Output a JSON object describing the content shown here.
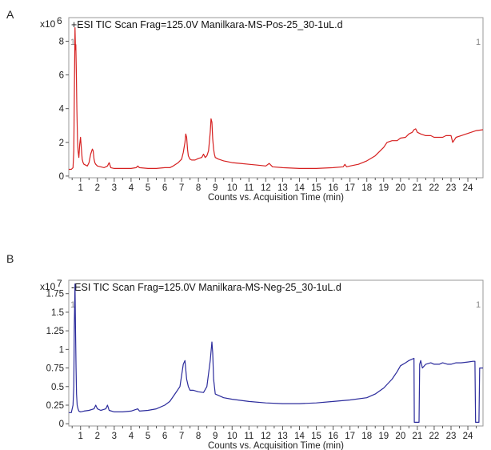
{
  "panels": [
    {
      "letter": "A"
    },
    {
      "letter": "B"
    }
  ],
  "chart_data": [
    {
      "type": "line",
      "title": "+ESI TIC Scan Frag=125.0V Manilkara-MS-Pos-25_30-1uL.d",
      "scale_base": "x10",
      "scale_exp": "6",
      "corner_left": "1",
      "corner_right": "1",
      "xlabel": "Counts vs. Acquisition Time (min)",
      "ylabel": "",
      "xlim": [
        0.3,
        24.9
      ],
      "ylim": [
        -0.1,
        9.4
      ],
      "xticks": [
        1,
        2,
        3,
        4,
        5,
        6,
        7,
        8,
        9,
        10,
        11,
        12,
        13,
        14,
        15,
        16,
        17,
        18,
        19,
        20,
        21,
        22,
        23,
        24
      ],
      "yticks": [
        0,
        2,
        4,
        6,
        8
      ],
      "ytick_labels": [
        "0",
        "2",
        "4",
        "6",
        "8"
      ],
      "color": "#d62020",
      "series": [
        {
          "x": [
            0.3,
            0.45,
            0.55,
            0.6,
            0.63,
            0.67,
            0.7,
            0.72,
            0.75,
            0.78,
            0.82,
            0.85,
            0.9,
            0.95,
            1.0,
            1.05,
            1.1,
            1.15,
            1.2,
            1.3,
            1.4,
            1.5,
            1.6,
            1.7,
            1.75,
            1.8,
            1.85,
            1.9,
            2.0,
            2.2,
            2.4,
            2.6,
            2.7,
            2.8,
            3.0,
            3.5,
            4.0,
            4.3,
            4.4,
            4.5,
            5.0,
            5.5,
            6.0,
            6.3,
            6.5,
            6.8,
            7.0,
            7.1,
            7.2,
            7.25,
            7.3,
            7.35,
            7.4,
            7.5,
            7.6,
            7.8,
            8.0,
            8.2,
            8.3,
            8.4,
            8.5,
            8.6,
            8.7,
            8.75,
            8.8,
            8.85,
            8.9,
            8.95,
            9.0,
            9.2,
            9.5,
            10.0,
            10.5,
            11.0,
            11.5,
            12.0,
            12.2,
            12.4,
            13.0,
            14.0,
            15.0,
            16.0,
            16.6,
            16.7,
            16.8,
            17.0,
            17.5,
            18.0,
            18.5,
            19.0,
            19.2,
            19.5,
            19.8,
            20.0,
            20.3,
            20.5,
            20.7,
            20.8,
            20.9,
            21.0,
            21.2,
            21.5,
            21.8,
            22.0,
            22.3,
            22.5,
            22.7,
            22.9,
            23.0,
            23.1,
            23.3,
            23.6,
            23.9,
            24.2,
            24.5,
            24.9
          ],
          "y": [
            0.4,
            0.4,
            0.5,
            1.5,
            4.5,
            8.8,
            7.5,
            7.8,
            6.0,
            4.0,
            2.2,
            1.5,
            1.1,
            1.9,
            2.3,
            1.6,
            1.0,
            0.8,
            0.7,
            0.65,
            0.6,
            0.8,
            1.3,
            1.6,
            1.5,
            1.0,
            0.8,
            0.7,
            0.6,
            0.55,
            0.5,
            0.6,
            0.8,
            0.5,
            0.45,
            0.45,
            0.45,
            0.5,
            0.6,
            0.5,
            0.45,
            0.45,
            0.5,
            0.5,
            0.6,
            0.8,
            1.0,
            1.4,
            2.0,
            2.5,
            2.3,
            1.6,
            1.2,
            1.0,
            0.95,
            0.95,
            1.05,
            1.1,
            1.3,
            1.1,
            1.2,
            1.5,
            2.6,
            3.4,
            3.2,
            2.2,
            1.6,
            1.3,
            1.1,
            1.0,
            0.9,
            0.8,
            0.75,
            0.7,
            0.65,
            0.6,
            0.75,
            0.55,
            0.5,
            0.45,
            0.45,
            0.5,
            0.55,
            0.7,
            0.55,
            0.6,
            0.7,
            0.9,
            1.2,
            1.7,
            2.0,
            2.1,
            2.1,
            2.25,
            2.3,
            2.5,
            2.6,
            2.75,
            2.8,
            2.6,
            2.5,
            2.4,
            2.4,
            2.3,
            2.3,
            2.3,
            2.4,
            2.4,
            2.4,
            2.0,
            2.3,
            2.4,
            2.5,
            2.6,
            2.7,
            2.75
          ]
        }
      ]
    },
    {
      "type": "line",
      "title": "-ESI TIC Scan Frag=125.0V Manilkara-MS-Neg-25_30-1uL.d",
      "scale_base": "x10",
      "scale_exp": "7",
      "corner_left": "1",
      "corner_right": "1",
      "xlabel": "Counts vs. Acquisition Time (min)",
      "ylabel": "",
      "xlim": [
        0.3,
        24.9
      ],
      "ylim": [
        -0.03,
        1.93
      ],
      "xticks": [
        1,
        2,
        3,
        4,
        5,
        6,
        7,
        8,
        9,
        10,
        11,
        12,
        13,
        14,
        15,
        16,
        17,
        18,
        19,
        20,
        21,
        22,
        23,
        24
      ],
      "yticks": [
        0,
        0.25,
        0.5,
        0.75,
        1,
        1.25,
        1.5,
        1.75
      ],
      "ytick_labels": [
        "0",
        "0.25",
        "0.5",
        "0.75",
        "1",
        "1.25",
        "1.5",
        "1.75"
      ],
      "color": "#2b2b9c",
      "series": [
        {
          "x": [
            0.3,
            0.45,
            0.55,
            0.6,
            0.63,
            0.67,
            0.7,
            0.73,
            0.76,
            0.8,
            0.85,
            0.9,
            1.0,
            1.2,
            1.5,
            1.8,
            1.9,
            2.0,
            2.2,
            2.5,
            2.6,
            2.7,
            3.0,
            3.5,
            4.0,
            4.4,
            4.5,
            5.0,
            5.5,
            6.0,
            6.3,
            6.6,
            6.9,
            7.0,
            7.1,
            7.2,
            7.3,
            7.4,
            7.5,
            7.7,
            8.0,
            8.3,
            8.5,
            8.7,
            8.8,
            8.85,
            8.9,
            9.0,
            9.2,
            9.5,
            10.0,
            11.0,
            12.0,
            13.0,
            14.0,
            15.0,
            16.0,
            17.0,
            18.0,
            18.5,
            19.0,
            19.5,
            19.8,
            20.0,
            20.3,
            20.5,
            20.7,
            20.8,
            20.82,
            20.86,
            21.1,
            21.14,
            21.2,
            21.3,
            21.5,
            21.8,
            22.0,
            22.3,
            22.5,
            22.8,
            23.0,
            23.3,
            23.6,
            24.0,
            24.3,
            24.42,
            24.46,
            24.66,
            24.7,
            24.8,
            24.9
          ],
          "y": [
            0.15,
            0.15,
            0.25,
            0.5,
            1.3,
            1.88,
            1.3,
            0.75,
            0.4,
            0.25,
            0.2,
            0.17,
            0.16,
            0.17,
            0.18,
            0.2,
            0.25,
            0.2,
            0.18,
            0.2,
            0.25,
            0.18,
            0.16,
            0.16,
            0.17,
            0.2,
            0.17,
            0.18,
            0.2,
            0.25,
            0.3,
            0.4,
            0.5,
            0.65,
            0.8,
            0.85,
            0.6,
            0.5,
            0.45,
            0.45,
            0.43,
            0.42,
            0.5,
            0.85,
            1.1,
            0.95,
            0.6,
            0.4,
            0.38,
            0.35,
            0.33,
            0.3,
            0.28,
            0.27,
            0.27,
            0.28,
            0.3,
            0.32,
            0.35,
            0.4,
            0.48,
            0.6,
            0.7,
            0.78,
            0.82,
            0.85,
            0.87,
            0.88,
            0.02,
            0.02,
            0.02,
            0.8,
            0.85,
            0.75,
            0.8,
            0.82,
            0.8,
            0.8,
            0.82,
            0.8,
            0.8,
            0.82,
            0.82,
            0.83,
            0.84,
            0.84,
            0.02,
            0.02,
            0.75,
            0.75,
            0.75
          ]
        }
      ]
    }
  ]
}
